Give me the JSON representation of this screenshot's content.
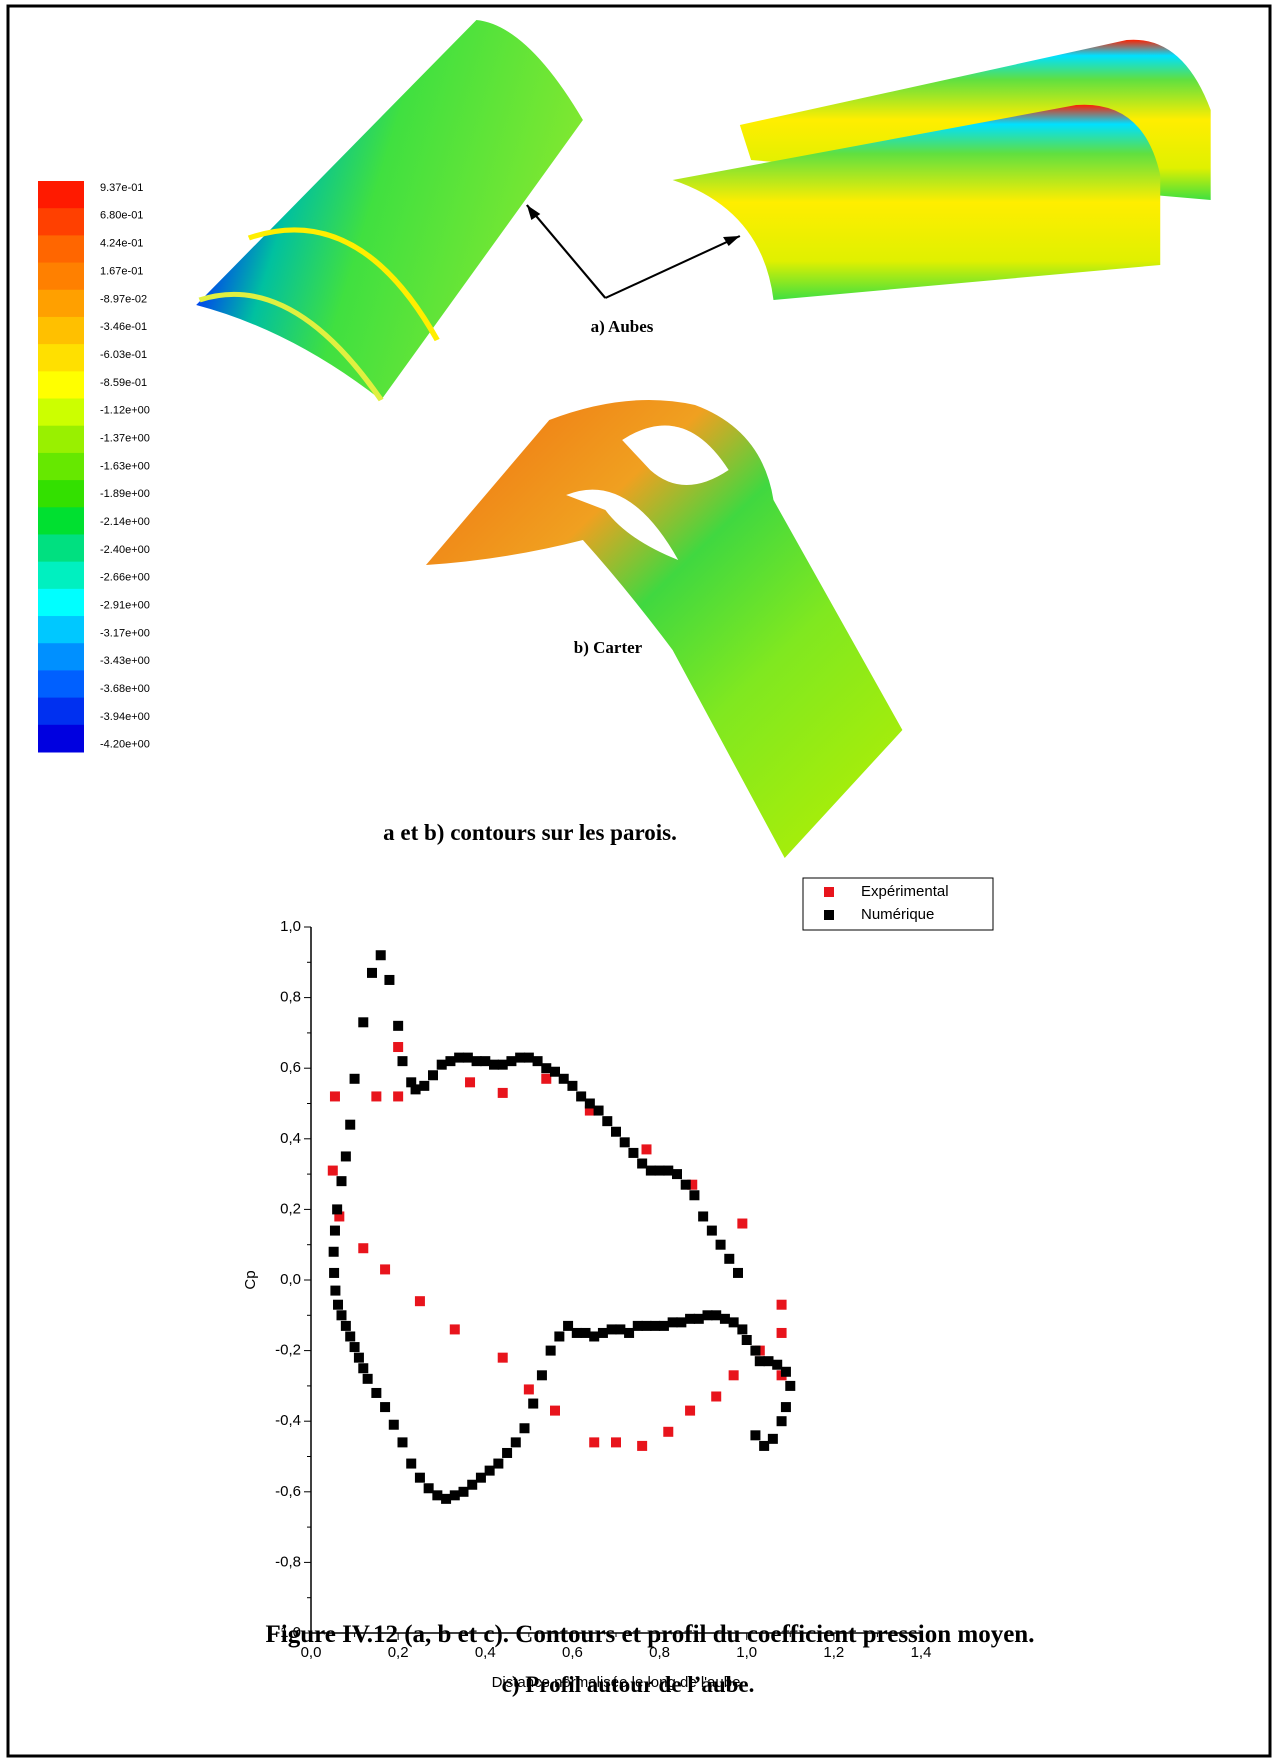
{
  "figure": {
    "colorbar": {
      "labels": [
        "9.37e-01",
        "6.80e-01",
        "4.24e-01",
        "1.67e-01",
        "-8.97e-02",
        "-3.46e-01",
        "-6.03e-01",
        "-8.59e-01",
        "-1.12e+00",
        "-1.37e+00",
        "-1.63e+00",
        "-1.89e+00",
        "-2.14e+00",
        "-2.40e+00",
        "-2.66e+00",
        "-2.91e+00",
        "-3.17e+00",
        "-3.43e+00",
        "-3.68e+00",
        "-3.94e+00",
        "-4.20e+00"
      ],
      "colors": [
        "#ff1a00",
        "#ff4000",
        "#ff6600",
        "#ff8000",
        "#ffa000",
        "#ffc000",
        "#ffe000",
        "#ffff00",
        "#ccff00",
        "#99f000",
        "#66e800",
        "#33e000",
        "#00e030",
        "#00e080",
        "#00f0c0",
        "#00ffff",
        "#00c8ff",
        "#0090ff",
        "#0060ff",
        "#0030f0",
        "#0000e0"
      ]
    },
    "label_a": "a) Aubes",
    "label_b": "b) Carter",
    "caption_ab": "a et b) contours sur les parois.",
    "caption_c": "c) Profil autour de l’aube.",
    "caption": "Figure IV.12 (a, b et c). Contours et profil du coefficient pression moyen."
  },
  "chart_data": {
    "type": "scatter",
    "x_label": "Distance normalisée le long de l'aube",
    "y_label": "Cp",
    "xlim": [
      0,
      1.4
    ],
    "ylim": [
      -1,
      1
    ],
    "xticks": [
      {
        "value": 0,
        "label": "0,0"
      },
      {
        "value": 0.2,
        "label": "0,2"
      },
      {
        "value": 0.4,
        "label": "0,4"
      },
      {
        "value": 0.6,
        "label": "0,6"
      },
      {
        "value": 0.8,
        "label": "0,8"
      },
      {
        "value": 1,
        "label": "1,0"
      },
      {
        "value": 1.2,
        "label": "1,2"
      },
      {
        "value": 1.4,
        "label": "1,4"
      }
    ],
    "yticks": [
      {
        "value": -1,
        "label": "-1,0"
      },
      {
        "value": -0.8,
        "label": "-0,8"
      },
      {
        "value": -0.6,
        "label": "-0,6"
      },
      {
        "value": -0.4,
        "label": "-0,4"
      },
      {
        "value": -0.2,
        "label": "-0,2"
      },
      {
        "value": 0,
        "label": "0,0"
      },
      {
        "value": 0.2,
        "label": "0,2"
      },
      {
        "value": 0.4,
        "label": "0,4"
      },
      {
        "value": 0.6,
        "label": "0,6"
      },
      {
        "value": 0.8,
        "label": "0,8"
      },
      {
        "value": 1,
        "label": "1,0"
      }
    ],
    "legend": "top-right",
    "series": [
      {
        "name": "Expérimental",
        "color": "#e8141c",
        "x": [
          0.05,
          0.055,
          0.065,
          0.12,
          0.17,
          0.15,
          0.2,
          0.2,
          0.25,
          0.33,
          0.365,
          0.44,
          0.44,
          0.5,
          0.54,
          0.56,
          0.64,
          0.65,
          0.7,
          0.77,
          0.76,
          0.82,
          0.875,
          0.87,
          0.93,
          0.97,
          0.99,
          1.03,
          1.08,
          1.08,
          1.08
        ],
        "values": [
          0.31,
          0.52,
          0.18,
          0.09,
          0.03,
          0.52,
          0.52,
          0.66,
          -0.06,
          -0.14,
          0.56,
          0.53,
          -0.22,
          -0.31,
          0.57,
          -0.37,
          0.48,
          -0.46,
          -0.46,
          0.37,
          -0.47,
          -0.43,
          0.27,
          -0.37,
          -0.33,
          -0.27,
          0.16,
          -0.2,
          -0.07,
          -0.15,
          -0.27
        ]
      },
      {
        "name": "Numérique",
        "color": "#000000",
        "x": [
          0.06,
          0.07,
          0.08,
          0.09,
          0.1,
          0.12,
          0.14,
          0.16,
          0.18,
          0.2,
          0.21,
          0.23,
          0.24,
          0.26,
          0.28,
          0.3,
          0.32,
          0.34,
          0.36,
          0.38,
          0.4,
          0.42,
          0.44,
          0.46,
          0.48,
          0.5,
          0.52,
          0.54,
          0.56,
          0.58,
          0.6,
          0.62,
          0.64,
          0.66,
          0.68,
          0.7,
          0.72,
          0.74,
          0.76,
          0.78,
          0.8,
          0.82,
          0.84,
          0.86,
          0.88,
          0.9,
          0.92,
          0.94,
          0.96,
          0.98,
          0.055,
          0.052,
          0.053,
          0.056,
          0.062,
          0.07,
          0.08,
          0.09,
          0.1,
          0.11,
          0.12,
          0.13,
          0.15,
          0.17,
          0.19,
          0.21,
          0.23,
          0.25,
          0.27,
          0.29,
          0.31,
          0.33,
          0.35,
          0.37,
          0.39,
          0.41,
          0.43,
          0.45,
          0.47,
          0.49,
          0.51,
          0.53,
          0.55,
          0.57,
          0.59,
          0.61,
          0.63,
          0.65,
          0.67,
          0.69,
          0.71,
          0.73,
          0.75,
          0.77,
          0.79,
          0.81,
          0.83,
          0.85,
          0.87,
          0.89,
          0.91,
          0.93,
          0.95,
          0.97,
          0.99,
          1.0,
          1.02,
          1.03,
          1.05,
          1.07,
          1.09,
          1.1,
          1.09,
          1.08,
          1.06,
          1.04,
          1.02
        ],
        "values": [
          0.2,
          0.28,
          0.35,
          0.44,
          0.57,
          0.73,
          0.87,
          0.92,
          0.85,
          0.72,
          0.62,
          0.56,
          0.54,
          0.55,
          0.58,
          0.61,
          0.62,
          0.63,
          0.63,
          0.62,
          0.62,
          0.61,
          0.61,
          0.62,
          0.63,
          0.63,
          0.62,
          0.6,
          0.59,
          0.57,
          0.55,
          0.52,
          0.5,
          0.48,
          0.45,
          0.42,
          0.39,
          0.36,
          0.33,
          0.31,
          0.31,
          0.31,
          0.3,
          0.27,
          0.24,
          0.18,
          0.14,
          0.1,
          0.06,
          0.02,
          0.14,
          0.08,
          0.02,
          -0.03,
          -0.07,
          -0.1,
          -0.13,
          -0.16,
          -0.19,
          -0.22,
          -0.25,
          -0.28,
          -0.32,
          -0.36,
          -0.41,
          -0.46,
          -0.52,
          -0.56,
          -0.59,
          -0.61,
          -0.62,
          -0.61,
          -0.6,
          -0.58,
          -0.56,
          -0.54,
          -0.52,
          -0.49,
          -0.46,
          -0.42,
          -0.35,
          -0.27,
          -0.2,
          -0.16,
          -0.13,
          -0.15,
          -0.15,
          -0.16,
          -0.15,
          -0.14,
          -0.14,
          -0.15,
          -0.13,
          -0.13,
          -0.13,
          -0.13,
          -0.12,
          -0.12,
          -0.11,
          -0.11,
          -0.1,
          -0.1,
          -0.11,
          -0.12,
          -0.14,
          -0.17,
          -0.2,
          -0.23,
          -0.23,
          -0.24,
          -0.26,
          -0.3,
          -0.36,
          -0.4,
          -0.45,
          -0.47,
          -0.44
        ]
      }
    ]
  }
}
